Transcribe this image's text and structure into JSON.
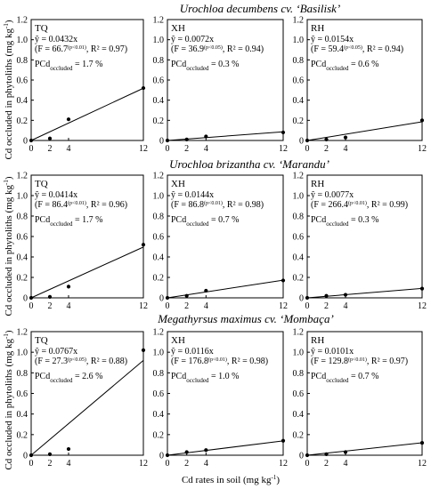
{
  "figure": {
    "rows": [
      {
        "title": "Urochloa decumbens cv. ‘Basilisk’"
      },
      {
        "title": "Urochloa brizantha cv. ‘Marandu’"
      },
      {
        "title": "Megathyrsus maximus cv. ‘Mombaça’"
      }
    ],
    "ylabel": "Cd occluded in phytoliths (mg kg",
    "ylabel_sup": "-1",
    "ylabel_end": ")",
    "xlabel": "Cd rates in soil (mg kg",
    "xlabel_sup": "-1",
    "xlabel_end": ")"
  },
  "chart_data": [
    {
      "type": "scatter",
      "row": 0,
      "col": 0,
      "panel_label": "TQ",
      "equation": "= 0.0432x",
      "stats": "(F = 66.7",
      "stats_sig": "(p<0.01)",
      "stats_r2": ", R² = 0.97)",
      "pcd_label": "PCd",
      "pcd_sub": "occluded",
      "pcd_value": "= 1.7 %",
      "x": [
        0,
        2,
        4,
        12
      ],
      "y": [
        0.0,
        0.02,
        0.21,
        0.52
      ],
      "slope": 0.0432,
      "xlim": [
        0,
        12
      ],
      "ylim": [
        0,
        1.2
      ],
      "xticks": [
        "0",
        "2",
        "4",
        "12"
      ],
      "yticks": [
        "0",
        "0.2",
        "0.4",
        "0.6",
        "0.8",
        "1.0",
        "1.2"
      ]
    },
    {
      "type": "scatter",
      "row": 0,
      "col": 1,
      "panel_label": "XH",
      "equation": "= 0.0072x",
      "stats": "(F = 36.9",
      "stats_sig": "(p<0.05)",
      "stats_r2": ", R² = 0.94)",
      "pcd_label": "PCd",
      "pcd_sub": "occluded",
      "pcd_value": "= 0.3 %",
      "x": [
        0,
        2,
        4,
        12
      ],
      "y": [
        0.0,
        0.01,
        0.04,
        0.08
      ],
      "slope": 0.0072,
      "xlim": [
        0,
        12
      ],
      "ylim": [
        0,
        1.2
      ],
      "xticks": [
        "0",
        "2",
        "4",
        "12"
      ],
      "yticks": [
        "0",
        "0.2",
        "0.4",
        "0.6",
        "0.8",
        "1.0",
        "1.2"
      ]
    },
    {
      "type": "scatter",
      "row": 0,
      "col": 2,
      "panel_label": "RH",
      "equation": "= 0.0154x",
      "stats": "(F = 59.4",
      "stats_sig": "(p<0.05)",
      "stats_r2": ", R² = 0.94)",
      "pcd_label": "PCd",
      "pcd_sub": "occluded",
      "pcd_value": "= 0.6 %",
      "x": [
        0,
        2,
        4,
        12
      ],
      "y": [
        0.0,
        0.01,
        0.03,
        0.2
      ],
      "slope": 0.0154,
      "xlim": [
        0,
        12
      ],
      "ylim": [
        0,
        1.2
      ],
      "xticks": [
        "0",
        "2",
        "4",
        "12"
      ],
      "yticks": [
        "0",
        "0.2",
        "0.4",
        "0.6",
        "0.8",
        "1.0",
        "1.2"
      ]
    },
    {
      "type": "scatter",
      "row": 1,
      "col": 0,
      "panel_label": "TQ",
      "equation": "= 0.0414x",
      "stats": "(F = 86.4",
      "stats_sig": "(p<0.01)",
      "stats_r2": ", R² = 0.96)",
      "pcd_label": "PCd",
      "pcd_sub": "occluded",
      "pcd_value": "= 1.7 %",
      "x": [
        0,
        2,
        4,
        12
      ],
      "y": [
        0.0,
        0.01,
        0.11,
        0.52
      ],
      "slope": 0.0414,
      "xlim": [
        0,
        12
      ],
      "ylim": [
        0,
        1.2
      ],
      "xticks": [
        "0",
        "2",
        "4",
        "12"
      ],
      "yticks": [
        "0",
        "0.2",
        "0.4",
        "0.6",
        "0.8",
        "1.0",
        "1.2"
      ]
    },
    {
      "type": "scatter",
      "row": 1,
      "col": 1,
      "panel_label": "XH",
      "equation": "= 0.0144x",
      "stats": "(F = 86.8",
      "stats_sig": "(p<0.01)",
      "stats_r2": ", R² = 0.98)",
      "pcd_label": "PCd",
      "pcd_sub": "occluded",
      "pcd_value": "= 0.7 %",
      "x": [
        0,
        2,
        4,
        12
      ],
      "y": [
        0.0,
        0.02,
        0.07,
        0.17
      ],
      "slope": 0.0144,
      "xlim": [
        0,
        12
      ],
      "ylim": [
        0,
        1.2
      ],
      "xticks": [
        "0",
        "2",
        "4",
        "12"
      ],
      "yticks": [
        "0",
        "0.2",
        "0.4",
        "0.6",
        "0.8",
        "1.0",
        "1.2"
      ]
    },
    {
      "type": "scatter",
      "row": 1,
      "col": 2,
      "panel_label": "RH",
      "equation": "= 0.0077x",
      "stats": "(F = 266.4",
      "stats_sig": "(p<0.01)",
      "stats_r2": ", R² = 0.99)",
      "pcd_label": "PCd",
      "pcd_sub": "occluded",
      "pcd_value": "= 0.3 %",
      "x": [
        0,
        2,
        4,
        12
      ],
      "y": [
        0.0,
        0.02,
        0.03,
        0.09
      ],
      "slope": 0.0077,
      "xlim": [
        0,
        12
      ],
      "ylim": [
        0,
        1.2
      ],
      "xticks": [
        "0",
        "2",
        "4",
        "12"
      ],
      "yticks": [
        "0",
        "0.2",
        "0.4",
        "0.6",
        "0.8",
        "1.0",
        "1.2"
      ]
    },
    {
      "type": "scatter",
      "row": 2,
      "col": 0,
      "panel_label": "TQ",
      "equation": "= 0.0767x",
      "stats": "(F = 27.3",
      "stats_sig": "(p<0.05)",
      "stats_r2": ", R² = 0.88)",
      "pcd_label": "PCd",
      "pcd_sub": "occluded",
      "pcd_value": "= 2.6 %",
      "x": [
        0,
        2,
        4,
        12
      ],
      "y": [
        0.0,
        0.01,
        0.06,
        1.02
      ],
      "slope": 0.0767,
      "xlim": [
        0,
        12
      ],
      "ylim": [
        0,
        1.2
      ],
      "xticks": [
        "0",
        "2",
        "4",
        "12"
      ],
      "yticks": [
        "0",
        "0.2",
        "0.4",
        "0.6",
        "0.8",
        "1.0",
        "1.2"
      ]
    },
    {
      "type": "scatter",
      "row": 2,
      "col": 1,
      "panel_label": "XH",
      "equation": "= 0.0116x",
      "stats": "(F = 176.8",
      "stats_sig": "(p<0.01)",
      "stats_r2": ", R² = 0.98)",
      "pcd_label": "PCd",
      "pcd_sub": "occluded",
      "pcd_value": "= 1.0 %",
      "x": [
        0,
        2,
        4,
        12
      ],
      "y": [
        0.0,
        0.03,
        0.05,
        0.14
      ],
      "slope": 0.0116,
      "xlim": [
        0,
        12
      ],
      "ylim": [
        0,
        1.2
      ],
      "xticks": [
        "0",
        "2",
        "4",
        "12"
      ],
      "yticks": [
        "0",
        "0.2",
        "0.4",
        "0.6",
        "0.8",
        "1.0",
        "1.2"
      ]
    },
    {
      "type": "scatter",
      "row": 2,
      "col": 2,
      "panel_label": "RH",
      "equation": "= 0.0101x",
      "stats": "(F = 129.8",
      "stats_sig": "(p<0.01)",
      "stats_r2": ", R² = 0.97)",
      "pcd_label": "PCd",
      "pcd_sub": "occluded",
      "pcd_value": "= 0.7 %",
      "x": [
        0,
        2,
        4,
        12
      ],
      "y": [
        0.0,
        0.01,
        0.03,
        0.12
      ],
      "slope": 0.0101,
      "xlim": [
        0,
        12
      ],
      "ylim": [
        0,
        1.2
      ],
      "xticks": [
        "0",
        "2",
        "4",
        "12"
      ],
      "yticks": [
        "0",
        "0.2",
        "0.4",
        "0.6",
        "0.8",
        "1.0",
        "1.2"
      ]
    }
  ]
}
